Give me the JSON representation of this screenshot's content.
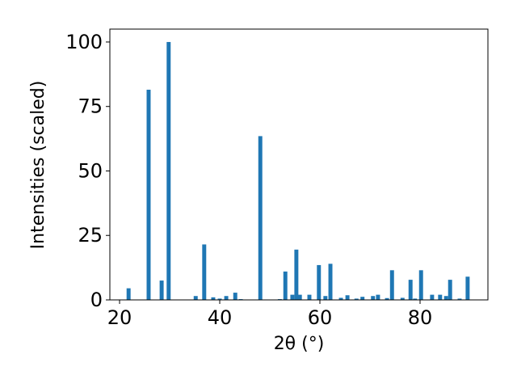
{
  "chart_data": {
    "type": "bar",
    "xlabel": "2θ (°)",
    "ylabel": "Intensities (scaled)",
    "color": "#1f77b4",
    "x": [
      21.8,
      25.8,
      28.4,
      29.8,
      35.2,
      36.9,
      38.7,
      40.0,
      41.3,
      43.1,
      44.2,
      48.1,
      52.0,
      53.1,
      54.5,
      55.3,
      56.0,
      57.9,
      59.8,
      61.1,
      62.1,
      64.2,
      65.5,
      67.3,
      68.5,
      70.6,
      71.6,
      73.4,
      74.4,
      76.5,
      78.1,
      79.0,
      80.2,
      82.4,
      84.0,
      85.2,
      86.0,
      87.9,
      89.5
    ],
    "values": [
      4.5,
      81.5,
      7.5,
      100,
      1.5,
      21.5,
      1,
      0.5,
      1.5,
      2.8,
      0.3,
      63.5,
      0.3,
      11,
      2,
      19.5,
      2,
      2,
      13.5,
      1.5,
      14,
      0.8,
      1.8,
      0.5,
      1.2,
      1.5,
      2,
      0.7,
      11.5,
      0.8,
      7.8,
      0.5,
      11.5,
      2,
      2,
      1.5,
      7.8,
      0.5,
      9
    ],
    "xlim": [
      18.06,
      93.55
    ],
    "ylim": [
      0,
      105
    ],
    "xticks": [
      20,
      40,
      60,
      80
    ],
    "yticks": [
      0,
      25,
      50,
      75,
      100
    ]
  }
}
